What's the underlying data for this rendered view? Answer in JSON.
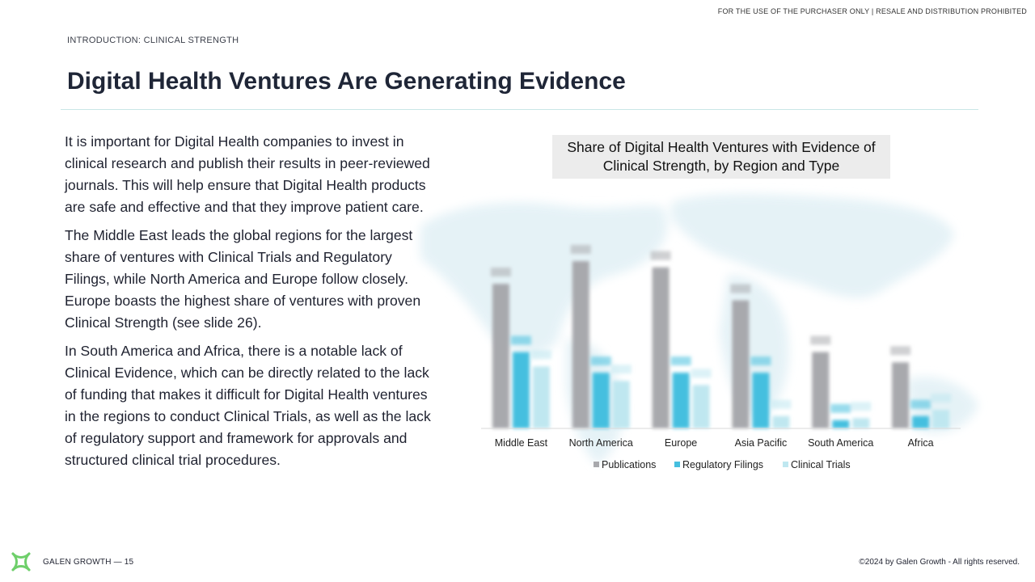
{
  "header": {
    "disclaimer": "FOR THE USE OF THE PURCHASER ONLY | RESALE AND DISTRIBUTION PROHIBITED",
    "section_label": "INTRODUCTION: CLINICAL STRENGTH",
    "title": "Digital Health Ventures Are Generating Evidence"
  },
  "body": {
    "paragraphs": [
      "It is important for Digital Health companies to invest in clinical research and publish their results in peer-reviewed journals. This will help ensure that Digital Health products are safe and effective and that they improve patient care.",
      "The Middle East leads the global regions for the largest share of ventures with Clinical Trials and Regulatory Filings, while North America and Europe follow closely. Europe boasts the highest share of ventures with proven Clinical Strength (see slide 26).",
      "In South America and Africa, there is a notable lack of Clinical Evidence, which can be directly related to the lack of funding that makes it difficult for Digital Health ventures in the regions to conduct Clinical Trials, as well as the lack of regulatory support and framework for approvals and structured clinical trial procedures."
    ]
  },
  "chart_data": {
    "type": "bar",
    "title": "Share of Digital Health Ventures with Evidence of Clinical Strength, by Region and Type",
    "categories": [
      "Middle East",
      "North America",
      "Europe",
      "Asia Pacific",
      "South America",
      "Africa"
    ],
    "series": [
      {
        "name": "Publications",
        "values": [
          70,
          81,
          78,
          62,
          37,
          32
        ],
        "color": "#a8a9ad"
      },
      {
        "name": "Regulatory Filings",
        "values": [
          37,
          27,
          27,
          27,
          4,
          6
        ],
        "color": "#45bfdf"
      },
      {
        "name": "Clinical Trials",
        "values": [
          30,
          23,
          21,
          6,
          5,
          9
        ],
        "color": "#bfe7f0"
      }
    ],
    "ylim": [
      0,
      90
    ],
    "legend_position": "bottom",
    "grid": false,
    "data_labels_blurred": true,
    "background": "world-map"
  },
  "footer": {
    "brand": "GALEN GROWTH — 15",
    "copyright": "©2024 by Galen Growth - All rights reserved.",
    "logo_icon": "galen-growth-logo-icon"
  }
}
